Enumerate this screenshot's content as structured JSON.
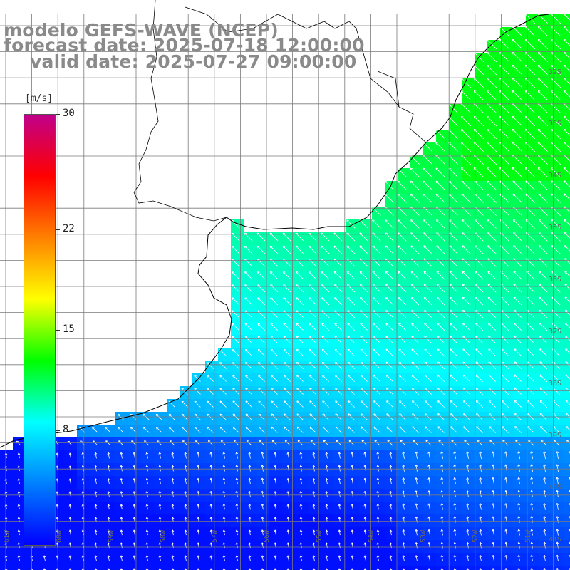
{
  "title": {
    "line1": "modelo GEFS-WAVE (NCEP)",
    "line2": "forecast date: 2025-07-18 12:00:00",
    "line3": "valid date: 2025-07-27 09:00:00"
  },
  "colorbar": {
    "unit": "[m/s]",
    "min": 0,
    "max": 30,
    "ticks": [
      "30",
      "22",
      "15",
      "8"
    ],
    "tick_values": [
      30,
      22,
      15,
      8
    ],
    "colors": [
      "#0000ff",
      "#0080ff",
      "#00ffff",
      "#00ff00",
      "#ffff00",
      "#ff8000",
      "#ff0000",
      "#c0008a"
    ]
  },
  "map": {
    "land_color": "#ffffff",
    "coast_color": "#000000",
    "grid_color": "#7a7a7a",
    "lon_labels": [
      "61W",
      "60W",
      "59W",
      "58W",
      "57W",
      "56W",
      "55W",
      "54W",
      "53W",
      "52W",
      "51W"
    ],
    "lat_labels": [
      "32S",
      "33S",
      "34S",
      "35S",
      "36S",
      "37S",
      "38S",
      "39S",
      "40S",
      "41S"
    ],
    "wind_direction": "southeast-to-northwest"
  }
}
